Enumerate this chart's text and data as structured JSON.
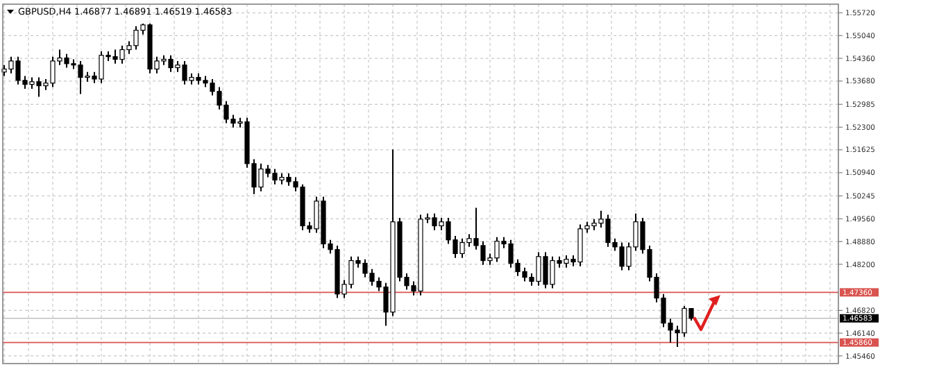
{
  "chart_data": {
    "type": "candlestick",
    "title": "GBPUSD,H4 1.46877 1.46891 1.46519 1.46583",
    "categories": [
      null,
      null,
      null,
      null,
      null,
      null,
      null,
      null,
      null,
      null,
      null,
      null,
      null,
      null,
      null,
      null,
      null,
      null,
      null,
      null,
      null,
      null,
      null,
      null,
      null,
      null,
      null,
      null,
      null,
      null,
      null,
      null,
      null,
      null,
      null,
      null,
      null,
      null,
      null,
      null,
      null,
      null,
      null,
      null,
      null,
      null,
      null,
      null,
      null,
      null,
      null,
      null,
      null,
      null,
      null,
      null,
      null,
      null,
      null,
      null,
      null,
      null,
      null,
      null,
      null,
      null,
      null,
      null,
      null,
      null,
      null,
      null,
      null,
      null,
      null,
      null,
      null,
      null,
      null,
      null,
      null,
      null,
      null,
      null,
      null,
      null,
      null,
      null,
      null,
      null,
      null,
      null,
      null,
      null,
      null,
      null,
      null,
      null,
      null,
      null,
      null,
      null,
      null,
      null,
      null,
      null,
      null,
      null,
      null,
      null,
      null,
      null,
      null,
      null,
      null,
      null,
      null,
      null,
      null,
      null,
      null
    ],
    "ohlc": [
      [
        1.5395,
        1.5416,
        1.5383,
        1.5404
      ],
      [
        1.5404,
        1.5441,
        1.5391,
        1.5428
      ],
      [
        1.5428,
        1.5441,
        1.5358,
        1.537
      ],
      [
        1.537,
        1.5383,
        1.5345,
        1.5358
      ],
      [
        1.5358,
        1.5379,
        1.5345,
        1.5366
      ],
      [
        1.5366,
        1.5379,
        1.5321,
        1.5354
      ],
      [
        1.5354,
        1.5374,
        1.5341,
        1.5362
      ],
      [
        1.5362,
        1.5441,
        1.535,
        1.5428
      ],
      [
        1.5428,
        1.5462,
        1.5416,
        1.5437
      ],
      [
        1.5437,
        1.5449,
        1.5408,
        1.542
      ],
      [
        1.542,
        1.5433,
        1.5404,
        1.5416
      ],
      [
        1.5416,
        1.5428,
        1.5329,
        1.5379
      ],
      [
        1.5379,
        1.5395,
        1.5366,
        1.5383
      ],
      [
        1.5383,
        1.5395,
        1.5362,
        1.5374
      ],
      [
        1.5374,
        1.5457,
        1.5362,
        1.5445
      ],
      [
        1.5445,
        1.5457,
        1.5428,
        1.5441
      ],
      [
        1.5441,
        1.5462,
        1.542,
        1.5433
      ],
      [
        1.5433,
        1.5474,
        1.542,
        1.5462
      ],
      [
        1.5462,
        1.5487,
        1.5449,
        1.5474
      ],
      [
        1.5474,
        1.5532,
        1.5462,
        1.552
      ],
      [
        1.552,
        1.554,
        1.5507,
        1.5536
      ],
      [
        1.5536,
        1.554,
        1.5391,
        1.5404
      ],
      [
        1.5404,
        1.5441,
        1.5391,
        1.5428
      ],
      [
        1.5428,
        1.5445,
        1.5416,
        1.5433
      ],
      [
        1.5433,
        1.5445,
        1.5395,
        1.5408
      ],
      [
        1.5408,
        1.5428,
        1.5395,
        1.5416
      ],
      [
        1.5416,
        1.5428,
        1.5358,
        1.537
      ],
      [
        1.537,
        1.5391,
        1.5358,
        1.5379
      ],
      [
        1.5379,
        1.5391,
        1.5358,
        1.537
      ],
      [
        1.537,
        1.5383,
        1.535,
        1.5362
      ],
      [
        1.5362,
        1.5374,
        1.5325,
        1.5337
      ],
      [
        1.5337,
        1.535,
        1.5283,
        1.5296
      ],
      [
        1.5296,
        1.5308,
        1.5242,
        1.5254
      ],
      [
        1.5254,
        1.5267,
        1.5229,
        1.5242
      ],
      [
        1.5242,
        1.5258,
        1.5229,
        1.5246
      ],
      [
        1.5246,
        1.5258,
        1.5109,
        1.5121
      ],
      [
        1.5121,
        1.5134,
        1.503,
        1.5051
      ],
      [
        1.5051,
        1.5121,
        1.5038,
        1.5105
      ],
      [
        1.5105,
        1.5117,
        1.508,
        1.5092
      ],
      [
        1.5092,
        1.5105,
        1.5059,
        1.5072
      ],
      [
        1.5072,
        1.5092,
        1.5059,
        1.508
      ],
      [
        1.508,
        1.5092,
        1.5055,
        1.5067
      ],
      [
        1.5067,
        1.508,
        1.5038,
        1.5051
      ],
      [
        1.5051,
        1.5059,
        1.4922,
        1.4935
      ],
      [
        1.4935,
        1.4947,
        1.4914,
        1.4926
      ],
      [
        1.4926,
        1.5022,
        1.4914,
        1.5009
      ],
      [
        1.5009,
        1.5022,
        1.4868,
        1.4881
      ],
      [
        1.4881,
        1.4893,
        1.4852,
        1.4864
      ],
      [
        1.4864,
        1.4876,
        1.4719,
        1.4731
      ],
      [
        1.4731,
        1.4773,
        1.4719,
        1.476
      ],
      [
        1.476,
        1.4843,
        1.4748,
        1.4831
      ],
      [
        1.4831,
        1.4843,
        1.481,
        1.4823
      ],
      [
        1.4823,
        1.4835,
        1.4781,
        1.4793
      ],
      [
        1.4793,
        1.4806,
        1.4756,
        1.4769
      ],
      [
        1.4769,
        1.4781,
        1.474,
        1.4752
      ],
      [
        1.4752,
        1.4764,
        1.4636,
        1.4677
      ],
      [
        1.4677,
        1.5163,
        1.4665,
        1.4947
      ],
      [
        1.4947,
        1.4959,
        1.4769,
        1.4781
      ],
      [
        1.4781,
        1.4793,
        1.4744,
        1.4756
      ],
      [
        1.4756,
        1.4769,
        1.4727,
        1.474
      ],
      [
        1.474,
        1.4968,
        1.4727,
        1.4955
      ],
      [
        1.4955,
        1.4972,
        1.4943,
        1.4959
      ],
      [
        1.4959,
        1.4972,
        1.4922,
        1.4935
      ],
      [
        1.4935,
        1.4959,
        1.4922,
        1.4947
      ],
      [
        1.4947,
        1.4959,
        1.4881,
        1.4893
      ],
      [
        1.4893,
        1.4905,
        1.4839,
        1.4852
      ],
      [
        1.4852,
        1.4897,
        1.4839,
        1.4885
      ],
      [
        1.4885,
        1.491,
        1.4872,
        1.4897
      ],
      [
        1.4897,
        1.4989,
        1.4864,
        1.4876
      ],
      [
        1.4876,
        1.4889,
        1.4818,
        1.4831
      ],
      [
        1.4831,
        1.4852,
        1.4818,
        1.4839
      ],
      [
        1.4839,
        1.4901,
        1.4827,
        1.4889
      ],
      [
        1.4889,
        1.4901,
        1.4868,
        1.4881
      ],
      [
        1.4881,
        1.4893,
        1.481,
        1.4823
      ],
      [
        1.4823,
        1.4835,
        1.4785,
        1.4798
      ],
      [
        1.4798,
        1.481,
        1.4769,
        1.4781
      ],
      [
        1.4781,
        1.4793,
        1.4756,
        1.4769
      ],
      [
        1.4769,
        1.4856,
        1.4756,
        1.4843
      ],
      [
        1.4843,
        1.4856,
        1.4748,
        1.476
      ],
      [
        1.476,
        1.4843,
        1.4748,
        1.4831
      ],
      [
        1.4831,
        1.4843,
        1.481,
        1.4823
      ],
      [
        1.4823,
        1.4847,
        1.481,
        1.4835
      ],
      [
        1.4835,
        1.4847,
        1.4814,
        1.4827
      ],
      [
        1.4827,
        1.4939,
        1.4814,
        1.4926
      ],
      [
        1.4926,
        1.4947,
        1.4914,
        1.4935
      ],
      [
        1.4935,
        1.4955,
        1.4922,
        1.4943
      ],
      [
        1.4943,
        1.498,
        1.493,
        1.4955
      ],
      [
        1.4955,
        1.4968,
        1.4872,
        1.4885
      ],
      [
        1.4885,
        1.4897,
        1.486,
        1.4872
      ],
      [
        1.4872,
        1.4885,
        1.4802,
        1.4814
      ],
      [
        1.4814,
        1.4885,
        1.4802,
        1.4872
      ],
      [
        1.4872,
        1.4972,
        1.486,
        1.4947
      ],
      [
        1.4947,
        1.4959,
        1.4852,
        1.4864
      ],
      [
        1.4864,
        1.4876,
        1.4769,
        1.4781
      ],
      [
        1.4781,
        1.4793,
        1.4706,
        1.4719
      ],
      [
        1.4719,
        1.4731,
        1.4632,
        1.4644
      ],
      [
        1.4644,
        1.4657,
        1.4586,
        1.4623
      ],
      [
        1.4623,
        1.4636,
        1.4573,
        1.4615
      ],
      [
        1.4615,
        1.4695,
        1.4603,
        1.4688
      ],
      [
        1.46877,
        1.46891,
        1.46519,
        1.46583
      ],
      null,
      null,
      null,
      null,
      null,
      null,
      null,
      null,
      null,
      null,
      null,
      null,
      null,
      null,
      null,
      null,
      null,
      null,
      null,
      null,
      null
    ],
    "ylim": [
      1.4523,
      1.5598
    ],
    "yticks": [
      {
        "value": 1.5572,
        "label": "1.55720"
      },
      {
        "value": 1.5504,
        "label": "1.55040"
      },
      {
        "value": 1.5436,
        "label": "1.54360"
      },
      {
        "value": 1.5368,
        "label": "1.53680"
      },
      {
        "value": 1.52985,
        "label": "1.52985"
      },
      {
        "value": 1.523,
        "label": "1.52300"
      },
      {
        "value": 1.51625,
        "label": "1.51625"
      },
      {
        "value": 1.5094,
        "label": "1.50940"
      },
      {
        "value": 1.50245,
        "label": "1.50245"
      },
      {
        "value": 1.4956,
        "label": "1.49560"
      },
      {
        "value": 1.4888,
        "label": "1.48880"
      },
      {
        "value": 1.482,
        "label": "1.48200"
      },
      {
        "value": 1.4682,
        "label": "1.46820"
      },
      {
        "value": 1.4614,
        "label": "1.46140"
      },
      {
        "value": 1.4546,
        "label": "1.45460"
      }
    ],
    "ref_lines": [
      {
        "axis": "y",
        "value": 1.4736,
        "label": "1.47360",
        "color": "#d9534f"
      },
      {
        "axis": "y",
        "value": 1.46583,
        "label": "1.46583",
        "color": "#c0c0c0"
      },
      {
        "axis": "y",
        "value": 1.4586,
        "label": "1.45860",
        "color": "#d9534f"
      }
    ],
    "grid": true
  }
}
